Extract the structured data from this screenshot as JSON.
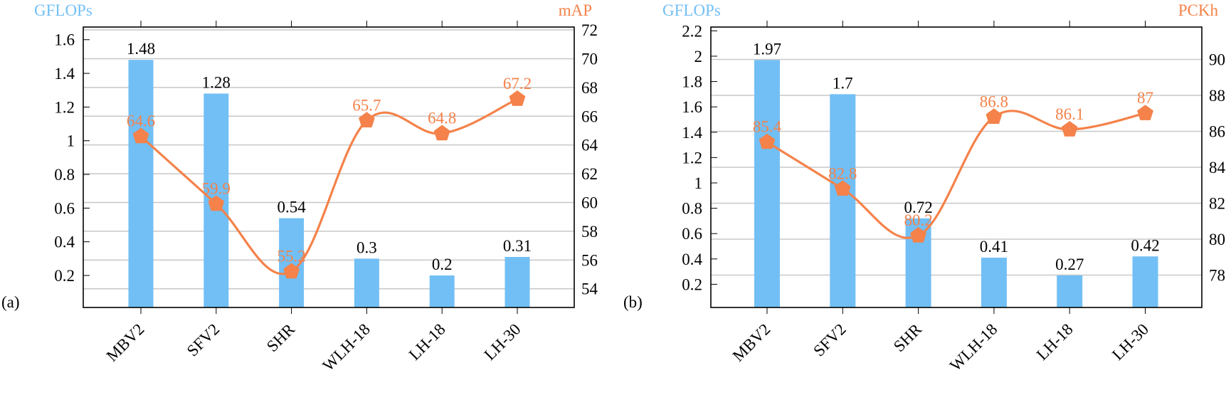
{
  "colors": {
    "bar": "#72BFF5",
    "line": "#F4824A",
    "left_axis_title": "#72BFF5",
    "right_axis_title": "#F4824A"
  },
  "chart_data": [
    {
      "type": "bar+line",
      "panel_label": "(a)",
      "categories": [
        "MBV2",
        "SFV2",
        "SHR",
        "WLH-18",
        "LH-18",
        "LH-30"
      ],
      "series": [
        {
          "name": "GFLOPs",
          "type": "bar",
          "axis": "left",
          "values": [
            1.48,
            1.28,
            0.54,
            0.3,
            0.2,
            0.31
          ],
          "labels": [
            "1.48",
            "1.28",
            "0.54",
            "0.3",
            "0.2",
            "0.31"
          ]
        },
        {
          "name": "mAP",
          "type": "line",
          "axis": "right",
          "marker": "pentagon",
          "smooth": true,
          "values": [
            64.6,
            59.9,
            55.2,
            65.7,
            64.8,
            67.2
          ],
          "labels": [
            "64.6",
            "59.9",
            "55.2",
            "65.7",
            "64.8",
            "67.2"
          ]
        }
      ],
      "ylabel_left": "GFLOPs",
      "ylabel_right": "mAP",
      "ylim_left": [
        0.01,
        1.675
      ],
      "ylim_right": [
        52.7,
        72.2
      ],
      "yticks_left": [
        "0.2",
        "0.4",
        "0.6",
        "0.8",
        "1",
        "1.2",
        "1.4",
        "1.6"
      ],
      "yticks_right": [
        "54",
        "56",
        "58",
        "60",
        "62",
        "64",
        "66",
        "68",
        "70",
        "72"
      ],
      "grid": "horizontal, on right-axis ticks"
    },
    {
      "type": "bar+line",
      "panel_label": "(b)",
      "categories": [
        "MBV2",
        "SFV2",
        "SHR",
        "WLH-18",
        "LH-18",
        "LH-30"
      ],
      "series": [
        {
          "name": "GFLOPs",
          "type": "bar",
          "axis": "left",
          "values": [
            1.97,
            1.7,
            0.72,
            0.41,
            0.27,
            0.42
          ],
          "labels": [
            "1.97",
            "1.7",
            "0.72",
            "0.41",
            "0.27",
            "0.42"
          ]
        },
        {
          "name": "PCKh",
          "type": "line",
          "axis": "right",
          "marker": "pentagon",
          "smooth": true,
          "values": [
            85.4,
            82.8,
            80.2,
            86.8,
            86.1,
            87
          ],
          "labels": [
            "85.4",
            "82.8",
            "80.2",
            "86.8",
            "86.1",
            "87"
          ]
        }
      ],
      "ylabel_left": "GFLOPs",
      "ylabel_right": "PCKh",
      "ylim_left": [
        0.017,
        2.23
      ],
      "ylim_right": [
        76.2,
        91.8
      ],
      "yticks_left": [
        "0.2",
        "0.4",
        "0.6",
        "0.8",
        "1",
        "1.2",
        "1.4",
        "1.6",
        "1.8",
        "2",
        "2.2"
      ],
      "yticks_right": [
        "78",
        "80",
        "82",
        "84",
        "86",
        "88",
        "90"
      ],
      "grid": "horizontal, on right-axis ticks"
    }
  ]
}
